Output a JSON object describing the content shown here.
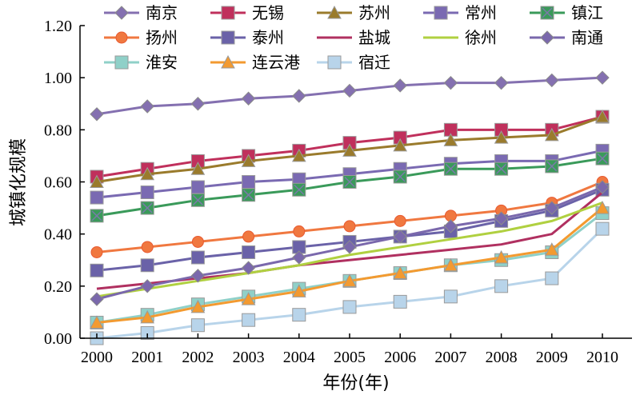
{
  "chart_data": {
    "type": "line",
    "xlabel": "年份(年)",
    "ylabel": "城镇化规模",
    "ylim": [
      0,
      1.2
    ],
    "yticks": [
      "0.00",
      "0.20",
      "0.40",
      "0.60",
      "0.80",
      "1.00",
      "1.20"
    ],
    "x": [
      "2000",
      "2001",
      "2002",
      "2003",
      "2004",
      "2005",
      "2006",
      "2007",
      "2008",
      "2009",
      "2010"
    ],
    "grid": false,
    "legend_position": "top",
    "series": [
      {
        "name": "南京",
        "color": "#8470b0",
        "marker": "diamond",
        "values": [
          0.86,
          0.89,
          0.9,
          0.92,
          0.93,
          0.95,
          0.97,
          0.98,
          0.98,
          0.99,
          1.0
        ]
      },
      {
        "name": "无锡",
        "color": "#c0305c",
        "marker": "square",
        "values": [
          0.62,
          0.65,
          0.68,
          0.7,
          0.72,
          0.75,
          0.77,
          0.8,
          0.8,
          0.8,
          0.85
        ]
      },
      {
        "name": "苏州",
        "color": "#9a7b2c",
        "marker": "triangle",
        "values": [
          0.6,
          0.63,
          0.65,
          0.68,
          0.7,
          0.72,
          0.74,
          0.76,
          0.77,
          0.78,
          0.85
        ]
      },
      {
        "name": "常州",
        "color": "#7a6ab2",
        "marker": "square",
        "values": [
          0.54,
          0.56,
          0.58,
          0.6,
          0.61,
          0.63,
          0.65,
          0.67,
          0.68,
          0.68,
          0.72
        ]
      },
      {
        "name": "镇江",
        "color": "#3a9a5a",
        "marker": "squarex",
        "values": [
          0.47,
          0.5,
          0.53,
          0.55,
          0.57,
          0.6,
          0.62,
          0.65,
          0.65,
          0.66,
          0.69
        ]
      },
      {
        "name": "扬州",
        "color": "#f07840",
        "marker": "circle",
        "values": [
          0.33,
          0.35,
          0.37,
          0.39,
          0.41,
          0.43,
          0.45,
          0.47,
          0.49,
          0.52,
          0.6
        ]
      },
      {
        "name": "泰州",
        "color": "#6a62a8",
        "marker": "square",
        "values": [
          0.26,
          0.28,
          0.31,
          0.33,
          0.35,
          0.37,
          0.39,
          0.41,
          0.45,
          0.49,
          0.57
        ]
      },
      {
        "name": "盐城",
        "color": "#b03060",
        "marker": "none",
        "values": [
          0.19,
          0.21,
          0.23,
          0.25,
          0.28,
          0.3,
          0.32,
          0.34,
          0.36,
          0.4,
          0.56
        ]
      },
      {
        "name": "徐州",
        "color": "#b0d040",
        "marker": "none",
        "values": [
          0.16,
          0.19,
          0.22,
          0.25,
          0.28,
          0.32,
          0.35,
          0.38,
          0.41,
          0.45,
          0.52
        ]
      },
      {
        "name": "南通",
        "color": "#7a68ac",
        "marker": "diamond",
        "values": [
          0.15,
          0.2,
          0.24,
          0.27,
          0.31,
          0.35,
          0.39,
          0.43,
          0.46,
          0.5,
          0.58
        ]
      },
      {
        "name": "淮安",
        "color": "#8fd0c8",
        "marker": "square",
        "values": [
          0.06,
          0.09,
          0.13,
          0.16,
          0.19,
          0.22,
          0.25,
          0.28,
          0.3,
          0.33,
          0.48
        ]
      },
      {
        "name": "连云港",
        "color": "#f39a30",
        "marker": "triangle",
        "values": [
          0.06,
          0.08,
          0.12,
          0.15,
          0.18,
          0.22,
          0.25,
          0.28,
          0.31,
          0.34,
          0.5
        ]
      },
      {
        "name": "宿迁",
        "color": "#b8d4ea",
        "marker": "square",
        "values": [
          0.0,
          0.02,
          0.05,
          0.07,
          0.09,
          0.12,
          0.14,
          0.16,
          0.2,
          0.23,
          0.42
        ]
      }
    ]
  }
}
